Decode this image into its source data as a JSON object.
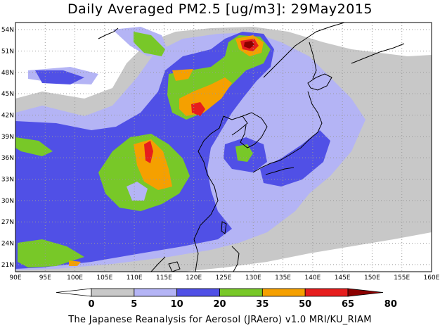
{
  "title": "Daily Averaged PM2.5 [ug/m3]: 29May2015",
  "footer": "The Japanese Reanalysis for Aerosol (JRAero) v1.0 MRI/KU_RIAM",
  "lon_labels": [
    "90E",
    "95E",
    "100E",
    "105E",
    "110E",
    "115E",
    "120E",
    "125E",
    "130E",
    "135E",
    "140E",
    "145E",
    "150E",
    "155E",
    "160E"
  ],
  "lat_labels": [
    "54N",
    "51N",
    "48N",
    "45N",
    "42N",
    "39N",
    "36N",
    "33N",
    "30N",
    "27N",
    "24N",
    "21N"
  ],
  "colorbar": {
    "labels": [
      "0",
      "5",
      "10",
      "20",
      "35",
      "50",
      "65",
      "80"
    ],
    "colors": [
      "#ffffff",
      "#c8c8c8",
      "#b4b4f5",
      "#5050e6",
      "#78c828",
      "#f5a000",
      "#e61e1e",
      "#8c0000"
    ]
  }
}
